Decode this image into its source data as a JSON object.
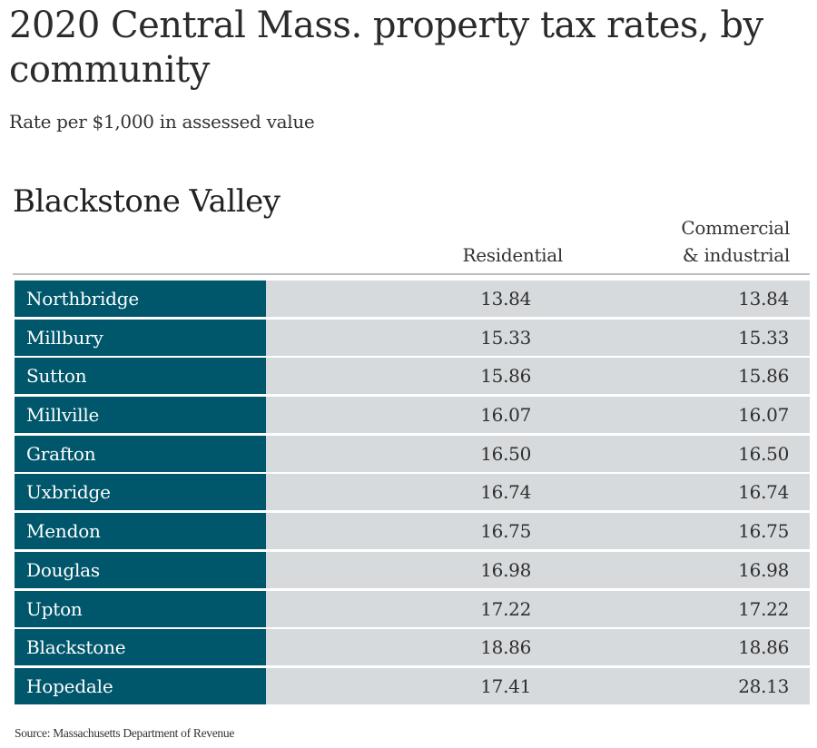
{
  "chart_data": {
    "type": "table",
    "title": "2020 Central Mass. property tax rates, by community",
    "subtitle": "Rate per $1,000 in assessed value",
    "section": "Blackstone Valley",
    "columns": [
      "Residential",
      "Commercial & industrial"
    ],
    "column_labels": {
      "residential": "Residential",
      "commercial_line1": "Commercial",
      "commercial_line2": "& industrial"
    },
    "rows": [
      {
        "community": "Northbridge",
        "residential": "13.84",
        "commercial": "13.84"
      },
      {
        "community": "Millbury",
        "residential": "15.33",
        "commercial": "15.33"
      },
      {
        "community": "Sutton",
        "residential": "15.86",
        "commercial": "15.86"
      },
      {
        "community": "Millville",
        "residential": "16.07",
        "commercial": "16.07"
      },
      {
        "community": "Grafton",
        "residential": "16.50",
        "commercial": "16.50"
      },
      {
        "community": "Uxbridge",
        "residential": "16.74",
        "commercial": "16.74"
      },
      {
        "community": "Mendon",
        "residential": "16.75",
        "commercial": "16.75"
      },
      {
        "community": "Douglas",
        "residential": "16.98",
        "commercial": "16.98"
      },
      {
        "community": "Upton",
        "residential": "17.22",
        "commercial": "17.22"
      },
      {
        "community": "Blackstone",
        "residential": "18.86",
        "commercial": "18.86"
      },
      {
        "community": "Hopedale",
        "residential": "17.41",
        "commercial": "28.13"
      }
    ],
    "source": "Source: Massachusetts Department of Revenue"
  },
  "colors": {
    "name_cell": "#00566b",
    "value_cell": "#d6dadd",
    "divider": "#bdbdbd"
  }
}
